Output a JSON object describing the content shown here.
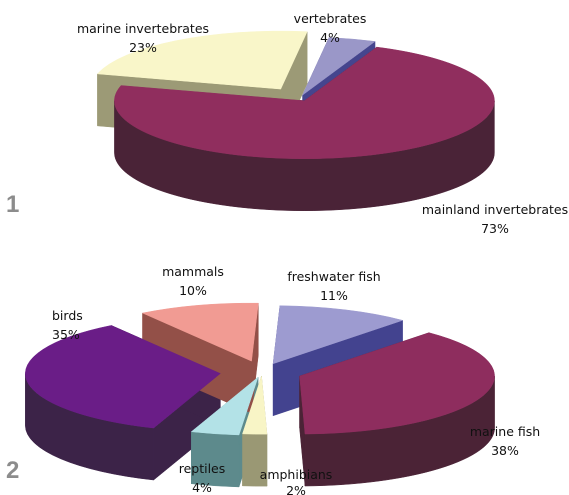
{
  "chart_data": [
    {
      "type": "pie",
      "panel_label": "1",
      "title": "",
      "slices": [
        {
          "label": "vertebrates",
          "percent_label": "4%",
          "value": 4,
          "top_color": "#9a97c8",
          "side_color": "#45458e"
        },
        {
          "label": "mainland invertebrates",
          "percent_label": "73%",
          "value": 73,
          "top_color": "#902e5e",
          "side_color": "#4a2337"
        },
        {
          "label": "marine invertebrates",
          "percent_label": "23%",
          "value": 23,
          "top_color": "#f9f6c9",
          "side_color": "#9c9a76"
        }
      ]
    },
    {
      "type": "pie",
      "panel_label": "2",
      "title": "",
      "slices": [
        {
          "label": "freshwater fish",
          "percent_label": "11%",
          "value": 11,
          "top_color": "#9d9bd0",
          "side_color": "#43438f"
        },
        {
          "label": "marine fish",
          "percent_label": "38%",
          "value": 38,
          "top_color": "#8e2d5e",
          "side_color": "#4b2336"
        },
        {
          "label": "amphibians",
          "percent_label": "2%",
          "value": 2,
          "top_color": "#f8f5c6",
          "side_color": "#9a9874"
        },
        {
          "label": "reptiles",
          "percent_label": "4%",
          "value": 4,
          "top_color": "#b3e2e7",
          "side_color": "#5d8a8c"
        },
        {
          "label": "birds",
          "percent_label": "35%",
          "value": 35,
          "top_color": "#6a1d87",
          "side_color": "#3c2348"
        },
        {
          "label": "mammals",
          "percent_label": "10%",
          "value": 10,
          "top_color": "#f19b93",
          "side_color": "#935048"
        }
      ]
    }
  ]
}
